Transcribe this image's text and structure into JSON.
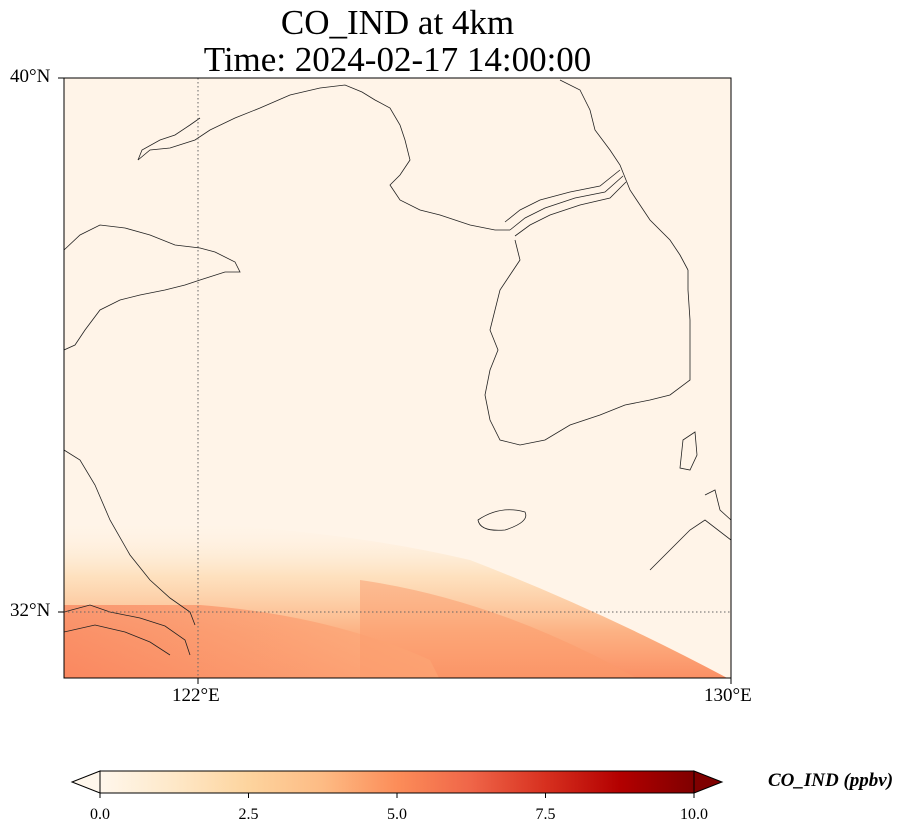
{
  "title_line1": "CO_IND at 4km",
  "title_line2": "Time: 2024-02-17 14:00:00",
  "map": {
    "lon_range": [
      121,
      130
    ],
    "lat_range": [
      31.1,
      40
    ],
    "lat_ticks": [
      "40°N",
      "32°N"
    ],
    "lon_ticks": [
      "122°E",
      "130°E"
    ],
    "gridlines_lat": [
      32
    ],
    "gridlines_lon": [
      122
    ]
  },
  "colorbar": {
    "label": "CO_IND (ppbv)",
    "min": 0,
    "max": 10,
    "ticks": [
      "0.0",
      "2.5",
      "5.0",
      "7.5",
      "10.0"
    ],
    "colormap": "OrRd",
    "extend": "both",
    "colors": [
      "#fff7ec",
      "#fee8c8",
      "#fdd49e",
      "#fdbb84",
      "#fc8d59",
      "#ef6548",
      "#d7301f",
      "#b30000",
      "#7f0000"
    ]
  }
}
